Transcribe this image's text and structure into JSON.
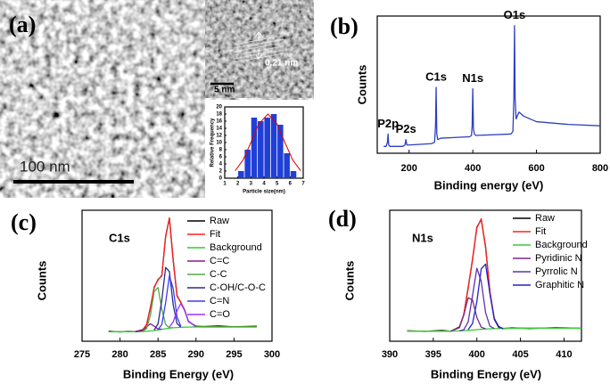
{
  "image": {
    "panel": "(a)",
    "scale_bar": "100 nm",
    "inset_scale_bar": "5 nm",
    "lattice_spacing": "0.21 nm"
  },
  "chart_data": [
    {
      "type": "histogram",
      "xlabel": "Particle size(nm)",
      "ylabel": "Relative Frequency",
      "bins": [
        2,
        2.5,
        3,
        3.5,
        4,
        4.5,
        5,
        5.5,
        6,
        6.5
      ],
      "counts": [
        2,
        8,
        17,
        16,
        17,
        18,
        15,
        7,
        2
      ],
      "color": "#1f3fd6",
      "curve": {
        "color": "#e00000",
        "x": [
          1.8,
          2.4,
          3,
          3.6,
          4.3,
          5,
          5.6,
          6.2,
          6.8
        ],
        "values": [
          2.1,
          5.1,
          10.0,
          15.2,
          18,
          15.2,
          10.0,
          5.1,
          2.1
        ]
      },
      "xlim": [
        1,
        7
      ],
      "xticks": [
        1,
        2,
        3,
        4,
        5,
        6,
        7
      ],
      "ylim": [
        0,
        20
      ],
      "yticks": [
        0,
        2,
        4,
        6,
        8,
        10,
        12,
        14,
        16,
        18,
        20
      ]
    },
    {
      "type": "line",
      "panel": "(b)",
      "xlabel": "Binding energy (eV)",
      "ylabel": "Counts",
      "x": [
        120,
        128,
        132,
        134,
        136,
        140,
        180,
        187,
        190,
        193,
        200,
        270,
        280,
        283,
        285,
        287,
        290,
        300,
        390,
        396,
        398,
        400,
        402,
        405,
        410,
        520,
        526,
        529,
        531,
        533,
        536,
        545,
        560,
        600,
        700,
        800
      ],
      "series": [
        {
          "color": "#2d3fbf",
          "values": [
            5,
            5,
            8,
            14,
            6,
            5,
            5,
            6,
            10,
            6,
            6,
            7,
            8,
            20,
            48,
            14,
            10,
            11,
            12,
            13,
            20,
            47,
            18,
            14,
            13,
            14,
            16,
            40,
            93,
            40,
            25,
            30,
            27,
            23,
            21,
            20
          ]
        }
      ],
      "annotations": [
        {
          "text": "P2p",
          "x": 134
        },
        {
          "text": "P2s",
          "x": 190
        },
        {
          "text": "C1s",
          "x": 285
        },
        {
          "text": "N1s",
          "x": 400
        },
        {
          "text": "O1s",
          "x": 531
        }
      ],
      "xlim": [
        100,
        800
      ],
      "xticks": [
        200,
        400,
        600,
        800
      ],
      "ylim": [
        0,
        100
      ]
    },
    {
      "type": "line",
      "panel": "(c)",
      "xlabel": "Binding Energy (eV)",
      "ylabel": "Counts",
      "inset_label": "C1s",
      "legend": "upper right",
      "x": [
        278.5,
        280,
        281,
        282,
        283,
        283.5,
        284,
        284.5,
        285,
        285.5,
        286,
        286.5,
        287,
        287.5,
        288,
        288.5,
        289,
        290,
        291,
        293,
        295,
        298
      ],
      "series": [
        {
          "name": "Raw",
          "color": "#000000",
          "values": [
            8.5,
            7.8,
            8.3,
            8.1,
            9.6,
            14.0,
            28.5,
            45.2,
            51.8,
            55.0,
            88.3,
            103.2,
            67.5,
            38.4,
            32.5,
            26.3,
            16.5,
            12.6,
            12.3,
            12.8,
            12.1,
            12.6
          ]
        },
        {
          "name": "Fit",
          "color": "#ff2020",
          "values": [
            8,
            8,
            8,
            8,
            9.2,
            14.3,
            27.9,
            45.8,
            51.3,
            55.5,
            87.6,
            103.7,
            68.1,
            37.9,
            32.9,
            25.9,
            16.9,
            12.1,
            12,
            12,
            12,
            12
          ]
        },
        {
          "name": "Background",
          "color": "#33cc33",
          "values": [
            8,
            8,
            8,
            8,
            8.2,
            8.4,
            8.7,
            9,
            9.5,
            10,
            10.5,
            11,
            11.3,
            11.5,
            11.7,
            11.8,
            11.9,
            12,
            12,
            12,
            12,
            12
          ]
        },
        {
          "name": "C=C",
          "color": "#8b1a8b",
          "values": [
            null,
            null,
            null,
            8,
            9.0,
            12.0,
            14.7,
            12.6,
            10.3,
            10.1,
            null,
            null,
            null,
            null,
            null,
            null,
            null,
            null,
            null,
            null,
            null,
            null
          ]
        },
        {
          "name": "C-C",
          "color": "#55aa44",
          "values": [
            null,
            null,
            null,
            null,
            8.4,
            10.7,
            21.9,
            41.8,
            45.1,
            26.9,
            14.0,
            11.3,
            11.3,
            null,
            null,
            null,
            null,
            null,
            null,
            null,
            null,
            null
          ]
        },
        {
          "name": "C-OH/C-O-C",
          "color": "#2b2b8c",
          "values": [
            null,
            null,
            null,
            null,
            null,
            null,
            null,
            9.4,
            14.6,
            34.5,
            62.0,
            58.4,
            30.4,
            14.9,
            12.0,
            null,
            null,
            null,
            null,
            null,
            null,
            null
          ]
        },
        {
          "name": "C=N",
          "color": "#3a3aff",
          "values": [
            null,
            null,
            null,
            null,
            null,
            null,
            null,
            null,
            9.8,
            14,
            32.4,
            55.1,
            44.0,
            20.4,
            12.6,
            null,
            null,
            null,
            null,
            null,
            null,
            null
          ]
        },
        {
          "name": "C=O",
          "color": "#9b30ff",
          "values": [
            null,
            null,
            null,
            null,
            null,
            null,
            null,
            null,
            null,
            null,
            null,
            11.9,
            16.3,
            25.6,
            31.7,
            25.9,
            16.9,
            12.1,
            null,
            null,
            null,
            null
          ]
        }
      ],
      "xlim": [
        275,
        300
      ],
      "xticks": [
        275,
        280,
        285,
        290,
        295,
        300
      ],
      "ylim": [
        0,
        110
      ]
    },
    {
      "type": "line",
      "panel": "(d)",
      "xlabel": "Binding Energy (eV)",
      "ylabel": "Counts",
      "inset_label": "N1s",
      "legend": "upper right",
      "x": [
        392,
        394,
        396,
        397,
        398,
        398.5,
        399,
        399.5,
        400,
        400.5,
        401,
        401.5,
        402,
        402.5,
        403,
        404,
        406,
        409,
        412
      ],
      "series": [
        {
          "name": "Raw",
          "color": "#000000",
          "values": [
            8.4,
            7.9,
            8.6,
            8.0,
            11.5,
            21.2,
            43.0,
            65.2,
            91.5,
            97.6,
            75.8,
            39.1,
            18.2,
            11.8,
            10.0,
            10.8,
            10.2,
            10.9,
            10.4
          ]
        },
        {
          "name": "Fit",
          "color": "#ff2020",
          "values": [
            8,
            8,
            8,
            8.1,
            10.9,
            21.7,
            42.3,
            65.9,
            90.8,
            98.2,
            75.0,
            39.8,
            17.6,
            11.2,
            10.3,
            10.4,
            10.5,
            10.5,
            10.5
          ]
        },
        {
          "name": "Background",
          "color": "#33cc33",
          "values": [
            8,
            8,
            8,
            8.1,
            8.3,
            8.5,
            8.7,
            9,
            9.3,
            9.6,
            9.8,
            10,
            10.1,
            10.2,
            10.3,
            10.4,
            10.5,
            10.5,
            10.5
          ]
        },
        {
          "name": "Pyridinic N",
          "color": "#7a2a8a",
          "values": [
            null,
            null,
            null,
            8.1,
            10.9,
            21.0,
            34.9,
            33.1,
            19.0,
            11.3,
            9.9,
            null,
            null,
            null,
            null,
            null,
            null,
            null,
            null
          ]
        },
        {
          "name": "Pyrrolic N",
          "color": "#6030b0",
          "values": [
            null,
            null,
            null,
            null,
            8.3,
            9.2,
            15.5,
            36.6,
            58.5,
            48.0,
            22.9,
            12.0,
            10.2,
            null,
            null,
            null,
            null,
            null,
            null
          ]
        },
        {
          "name": "Graphitic N",
          "color": "#2222cc",
          "values": [
            null,
            null,
            null,
            null,
            null,
            null,
            9.3,
            14.2,
            31.9,
            58.1,
            61.8,
            37.8,
            17.5,
            11.2,
            10.3,
            null,
            null,
            null,
            null
          ]
        }
      ],
      "xlim": [
        390,
        412
      ],
      "xticks": [
        390,
        395,
        400,
        405,
        410
      ],
      "ylim": [
        0,
        105
      ]
    }
  ]
}
